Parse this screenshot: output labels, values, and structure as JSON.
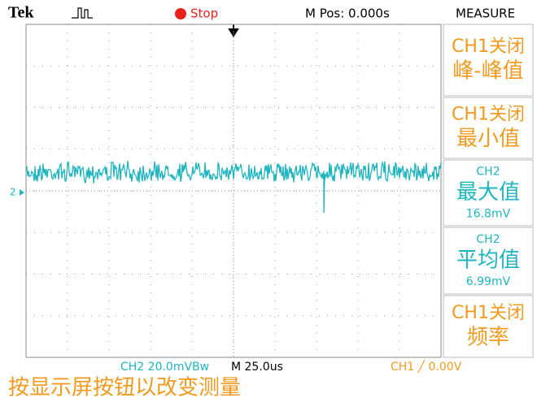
{
  "header": {
    "brand": "Tek",
    "state": "Stop",
    "position": "M Pos: 0.000s",
    "menu": "MEASURE"
  },
  "menu_items": [
    {
      "lines": [
        "CH1关闭",
        "峰-峰值"
      ],
      "color": "#f39a1e"
    },
    {
      "lines": [
        "CH1关闭",
        "最小值"
      ],
      "color": "#f39a1e"
    },
    {
      "lines": [
        "CH2",
        "最大值",
        "16.8mV"
      ],
      "color": "#1fb5c0"
    },
    {
      "lines": [
        "CH2",
        "平均值",
        "6.99mV"
      ],
      "color": "#1fb5c0"
    },
    {
      "lines": [
        "CH1关闭",
        "频率"
      ],
      "color": "#f39a1e"
    }
  ],
  "channel_marker": "2",
  "status": {
    "channel": "CH2  20.0mVBw",
    "timebase": "M 25.0us",
    "trigger": "CH1 ╱ 0.00V"
  },
  "hint": "按显示屏按钮以改变测量"
}
